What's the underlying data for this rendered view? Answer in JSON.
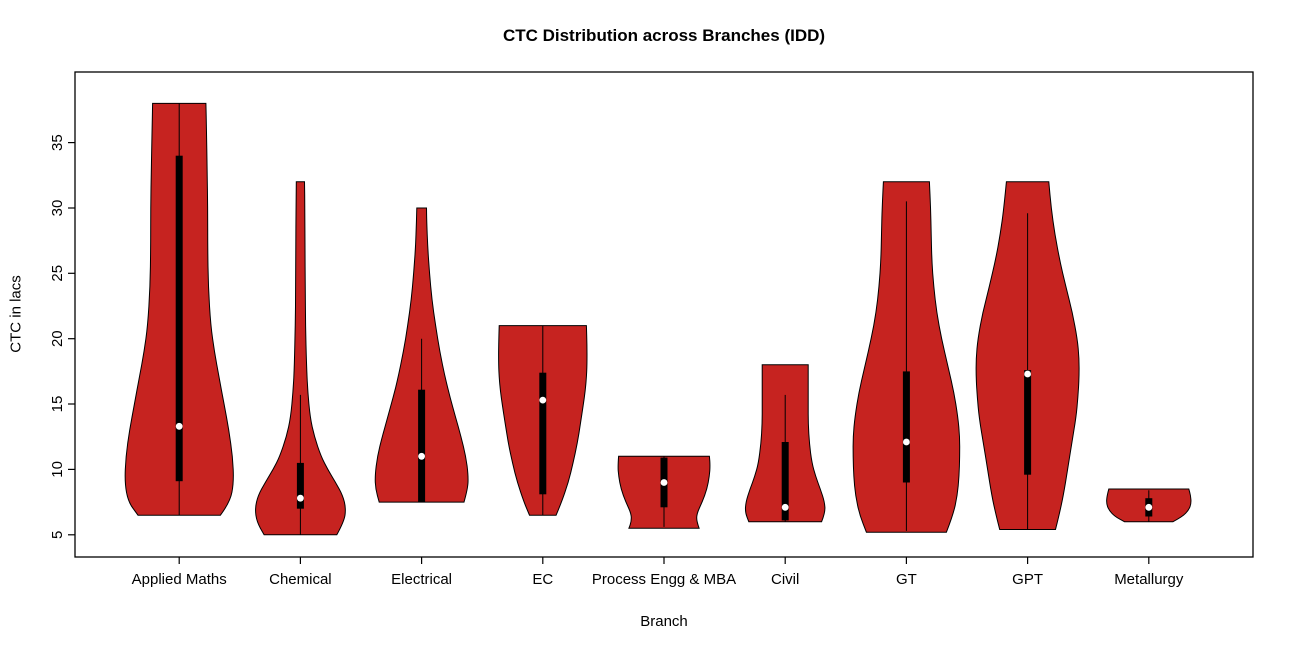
{
  "chart_data": {
    "type": "violin",
    "title": "CTC Distribution across Branches (IDD)",
    "xlabel": "Branch",
    "ylabel": "CTC in lacs",
    "ylim": [
      3.3,
      40.4
    ],
    "yticks": [
      5,
      10,
      15,
      20,
      25,
      30,
      35
    ],
    "grid": false,
    "legend": "none",
    "fill_color": "#C62320",
    "outline_color": "#000000",
    "box_color": "#000000",
    "median_dot_color": "#FFFFFF",
    "categories": [
      "Applied Maths",
      "Chemical",
      "Electrical",
      "EC",
      "Process Engg & MBA",
      "Civil",
      "GT",
      "GPT",
      "Metallurgy"
    ],
    "violins": [
      {
        "branch": "Applied Maths",
        "min": 6.5,
        "max": 38.0,
        "median": 13.3,
        "q1": 9.1,
        "q3": 34.0,
        "whisker_low": 6.5,
        "whisker_high": 38.0,
        "profile": [
          [
            6.5,
            0.34
          ],
          [
            7.5,
            0.42
          ],
          [
            9,
            0.45
          ],
          [
            11,
            0.44
          ],
          [
            13,
            0.41
          ],
          [
            15,
            0.37
          ],
          [
            17,
            0.33
          ],
          [
            19,
            0.29
          ],
          [
            21,
            0.26
          ],
          [
            24,
            0.24
          ],
          [
            27,
            0.235
          ],
          [
            30,
            0.235
          ],
          [
            33,
            0.23
          ],
          [
            36,
            0.225
          ],
          [
            38,
            0.22
          ]
        ]
      },
      {
        "branch": "Chemical",
        "min": 5.0,
        "max": 32.0,
        "median": 7.8,
        "q1": 7.0,
        "q3": 10.5,
        "whisker_low": 5.0,
        "whisker_high": 15.7,
        "profile": [
          [
            5,
            0.3
          ],
          [
            6,
            0.36
          ],
          [
            7,
            0.375
          ],
          [
            8,
            0.35
          ],
          [
            9,
            0.29
          ],
          [
            10,
            0.225
          ],
          [
            11,
            0.17
          ],
          [
            12.5,
            0.115
          ],
          [
            14,
            0.08
          ],
          [
            16,
            0.06
          ],
          [
            18,
            0.05
          ],
          [
            21,
            0.042
          ],
          [
            24,
            0.04
          ],
          [
            27,
            0.038
          ],
          [
            30,
            0.036
          ],
          [
            32,
            0.034
          ]
        ]
      },
      {
        "branch": "Electrical",
        "min": 7.5,
        "max": 30.0,
        "median": 11.0,
        "q1": 7.5,
        "q3": 16.1,
        "whisker_low": 7.5,
        "whisker_high": 20.0,
        "profile": [
          [
            7.5,
            0.35
          ],
          [
            8.5,
            0.38
          ],
          [
            9.5,
            0.385
          ],
          [
            11,
            0.365
          ],
          [
            12.5,
            0.325
          ],
          [
            14,
            0.28
          ],
          [
            15.5,
            0.235
          ],
          [
            17,
            0.195
          ],
          [
            19,
            0.15
          ],
          [
            21,
            0.115
          ],
          [
            23,
            0.085
          ],
          [
            25,
            0.065
          ],
          [
            27,
            0.05
          ],
          [
            29,
            0.042
          ],
          [
            30,
            0.04
          ]
        ]
      },
      {
        "branch": "EC",
        "min": 6.5,
        "max": 21.0,
        "median": 15.3,
        "q1": 8.1,
        "q3": 17.4,
        "whisker_low": 6.5,
        "whisker_high": 21.0,
        "profile": [
          [
            6.5,
            0.11
          ],
          [
            7.5,
            0.155
          ],
          [
            9,
            0.21
          ],
          [
            10.5,
            0.25
          ],
          [
            12,
            0.285
          ],
          [
            13.5,
            0.31
          ],
          [
            15,
            0.335
          ],
          [
            16,
            0.35
          ],
          [
            17,
            0.36
          ],
          [
            18,
            0.365
          ],
          [
            19.5,
            0.365
          ],
          [
            21,
            0.36
          ]
        ]
      },
      {
        "branch": "Process Engg & MBA",
        "min": 5.5,
        "max": 11.0,
        "median": 9.0,
        "q1": 7.1,
        "q3": 10.9,
        "whisker_low": 5.6,
        "whisker_high": 11.0,
        "profile": [
          [
            5.5,
            0.29
          ],
          [
            6,
            0.27
          ],
          [
            6.6,
            0.27
          ],
          [
            7.5,
            0.315
          ],
          [
            8.5,
            0.355
          ],
          [
            9.5,
            0.375
          ],
          [
            10.3,
            0.38
          ],
          [
            11,
            0.375
          ]
        ]
      },
      {
        "branch": "Civil",
        "min": 6.0,
        "max": 18.0,
        "median": 7.1,
        "q1": 6.1,
        "q3": 12.1,
        "whisker_low": 6.0,
        "whisker_high": 15.7,
        "profile": [
          [
            6,
            0.3
          ],
          [
            6.7,
            0.33
          ],
          [
            7.5,
            0.325
          ],
          [
            8.5,
            0.29
          ],
          [
            9.5,
            0.25
          ],
          [
            10.5,
            0.22
          ],
          [
            12,
            0.2
          ],
          [
            13.5,
            0.19
          ],
          [
            15,
            0.19
          ],
          [
            16.5,
            0.19
          ],
          [
            18,
            0.19
          ]
        ]
      },
      {
        "branch": "GT",
        "min": 5.2,
        "max": 32.0,
        "median": 12.1,
        "q1": 9.0,
        "q3": 17.5,
        "whisker_low": 5.3,
        "whisker_high": 30.5,
        "profile": [
          [
            5.2,
            0.33
          ],
          [
            6.5,
            0.385
          ],
          [
            8,
            0.42
          ],
          [
            9.5,
            0.435
          ],
          [
            11,
            0.44
          ],
          [
            12.5,
            0.44
          ],
          [
            14,
            0.425
          ],
          [
            16,
            0.39
          ],
          [
            18,
            0.34
          ],
          [
            20,
            0.29
          ],
          [
            22,
            0.25
          ],
          [
            24,
            0.225
          ],
          [
            26,
            0.21
          ],
          [
            28,
            0.205
          ],
          [
            30,
            0.2
          ],
          [
            32,
            0.19
          ]
        ]
      },
      {
        "branch": "GPT",
        "min": 5.4,
        "max": 32.0,
        "median": 17.3,
        "q1": 9.6,
        "q3": 17.6,
        "whisker_low": 5.4,
        "whisker_high": 29.6,
        "profile": [
          [
            5.4,
            0.23
          ],
          [
            6.5,
            0.26
          ],
          [
            8,
            0.295
          ],
          [
            10,
            0.33
          ],
          [
            12,
            0.365
          ],
          [
            14,
            0.4
          ],
          [
            15.5,
            0.415
          ],
          [
            17,
            0.425
          ],
          [
            18.5,
            0.425
          ],
          [
            20,
            0.41
          ],
          [
            22,
            0.37
          ],
          [
            24,
            0.315
          ],
          [
            26,
            0.265
          ],
          [
            28,
            0.225
          ],
          [
            30,
            0.195
          ],
          [
            32,
            0.175
          ]
        ]
      },
      {
        "branch": "Metallurgy",
        "min": 6.0,
        "max": 8.5,
        "median": 7.1,
        "q1": 6.4,
        "q3": 7.8,
        "whisker_low": 6.0,
        "whisker_high": 8.4,
        "profile": [
          [
            6,
            0.2
          ],
          [
            6.4,
            0.28
          ],
          [
            6.9,
            0.33
          ],
          [
            7.4,
            0.35
          ],
          [
            8,
            0.345
          ],
          [
            8.5,
            0.33
          ]
        ]
      }
    ]
  }
}
